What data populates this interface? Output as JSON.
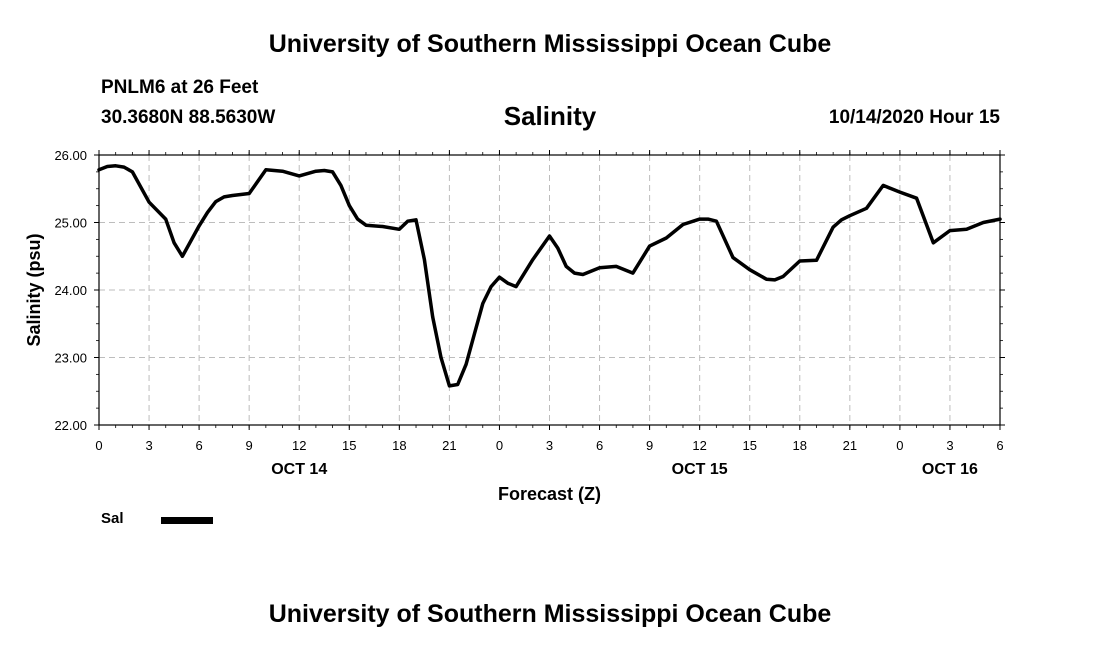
{
  "header": {
    "title": "University of Southern Mississippi Ocean Cube",
    "station_name": "PNLM6 at 26 Feet",
    "station_coords": "30.3680N 88.5630W",
    "chart_title": "Salinity",
    "run_time": "10/14/2020 Hour 15"
  },
  "footer": {
    "title": "University of Southern Mississippi Ocean Cube"
  },
  "legend": {
    "label": "Sal",
    "color": "#000000"
  },
  "chart_data": {
    "type": "line",
    "title": "Salinity",
    "xlabel": "Forecast (Z)",
    "ylabel": "Salinity (psu)",
    "ylim": [
      22.0,
      26.0
    ],
    "xlim_hours": [
      0,
      54
    ],
    "grid": true,
    "legend_position": "bottom-left",
    "y_ticks": [
      "22.00",
      "23.00",
      "24.00",
      "25.00",
      "26.00"
    ],
    "y_tick_values": [
      22,
      23,
      24,
      25,
      26
    ],
    "x_ticks": [
      "0",
      "3",
      "6",
      "9",
      "12",
      "15",
      "18",
      "21",
      "0",
      "3",
      "6",
      "9",
      "12",
      "15",
      "18",
      "21",
      "0",
      "3",
      "6"
    ],
    "date_labels": [
      {
        "text": "OCT 14",
        "hour": 12
      },
      {
        "text": "OCT 15",
        "hour": 36
      },
      {
        "text": "OCT 16",
        "hour": 51
      }
    ],
    "series": [
      {
        "name": "Sal",
        "color": "#000000",
        "x": [
          0,
          0.5,
          1,
          1.5,
          2,
          3,
          4,
          4.5,
          5,
          6,
          6.5,
          7,
          7.5,
          8,
          9,
          10,
          11,
          12,
          13,
          13.5,
          14,
          14.5,
          15,
          15.5,
          16,
          17,
          18,
          18.5,
          19,
          19.5,
          20,
          20.5,
          21,
          21.5,
          22,
          22.5,
          23,
          23.5,
          24,
          24.5,
          25,
          26,
          27,
          27.5,
          28,
          28.5,
          29,
          30,
          31,
          32,
          33,
          34,
          35,
          36,
          36.5,
          37,
          38,
          39,
          40,
          40.5,
          41,
          42,
          43,
          44,
          44.5,
          45,
          46,
          47,
          47.5,
          48,
          49,
          50,
          51,
          52,
          53,
          54
        ],
        "y": [
          25.78,
          25.83,
          25.84,
          25.82,
          25.75,
          25.3,
          25.05,
          24.7,
          24.5,
          24.95,
          25.15,
          25.31,
          25.38,
          25.4,
          25.43,
          25.78,
          25.76,
          25.69,
          25.76,
          25.77,
          25.75,
          25.55,
          25.25,
          25.05,
          24.96,
          24.94,
          24.9,
          25.02,
          25.04,
          24.45,
          23.6,
          23.0,
          22.58,
          22.6,
          22.9,
          23.35,
          23.8,
          24.05,
          24.19,
          24.1,
          24.05,
          24.45,
          24.8,
          24.62,
          24.35,
          24.25,
          24.23,
          24.33,
          24.35,
          24.25,
          24.65,
          24.77,
          24.97,
          25.05,
          25.05,
          25.02,
          24.48,
          24.3,
          24.16,
          24.15,
          24.2,
          24.43,
          24.44,
          24.93,
          25.04,
          25.1,
          25.21,
          25.55,
          25.5,
          25.45,
          25.36,
          24.7,
          24.88,
          24.9,
          25.0,
          25.05
        ]
      }
    ]
  }
}
